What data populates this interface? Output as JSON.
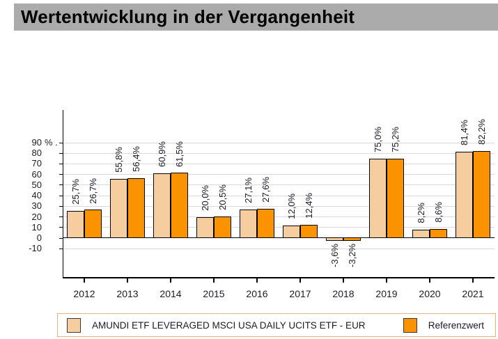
{
  "title_bar": {
    "text": "Wertentwicklung in der Vergangenheit",
    "bg_color": "#ABABAB"
  },
  "chart_data": {
    "type": "bar",
    "title": "Wertentwicklung in der Vergangenheit",
    "categories": [
      "2012",
      "2013",
      "2014",
      "2015",
      "2016",
      "2017",
      "2018",
      "2019",
      "2020",
      "2021"
    ],
    "series": [
      {
        "name": "AMUNDI ETF LEVERAGED MSCI USA DAILY UCITS ETF - EUR",
        "color": "#F6CD9E",
        "values": [
          25.7,
          55.8,
          60.9,
          20.0,
          27.1,
          12.0,
          -3.6,
          75.0,
          8.2,
          81.4
        ],
        "value_labels": [
          "25,7%",
          "55,8%",
          "60,9%",
          "20,0%",
          "27,1%",
          "12,0%",
          "-3,6%",
          "75,0%",
          "8,2%",
          "81,4%"
        ]
      },
      {
        "name": "Referenzwert",
        "color": "#FB9200",
        "values": [
          26.7,
          56.4,
          61.5,
          20.5,
          27.6,
          12.4,
          -3.2,
          75.2,
          8.6,
          82.2
        ],
        "value_labels": [
          "26,7%",
          "56,4%",
          "61,5%",
          "20,5%",
          "27,6%",
          "12,4%",
          "-3,2%",
          "75,2%",
          "8,6%",
          "82,2%"
        ]
      }
    ],
    "xlabel": "",
    "ylabel": "%",
    "y_axis": {
      "unit_suffix": "% .",
      "ticks": [
        90,
        80,
        70,
        60,
        50,
        40,
        30,
        20,
        10,
        0,
        -10
      ],
      "tick_labels": [
        "90",
        "80",
        "70",
        "60",
        "50",
        "40",
        "30",
        "20",
        "10",
        "0",
        "-10"
      ]
    },
    "ylim": [
      -38,
      105
    ],
    "grid": true,
    "gridline_color": "#D9D9D9",
    "legend_position": "bottom"
  },
  "legend": {
    "border_color": "#F1AF7B",
    "items": [
      {
        "label": "AMUNDI ETF LEVERAGED MSCI USA DAILY UCITS ETF - EUR",
        "color": "#F6CD9E"
      },
      {
        "label": "Referenzwert",
        "color": "#FB9200"
      }
    ]
  }
}
